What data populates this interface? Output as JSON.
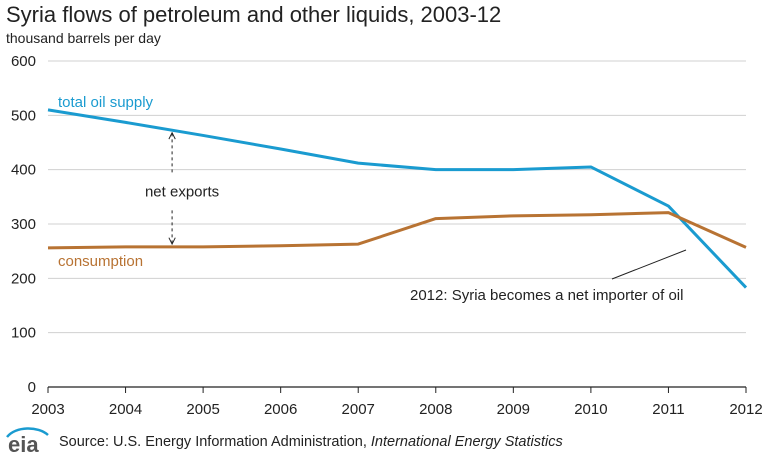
{
  "logo_text": "eia",
  "source": {
    "prefix": "Source: U.S. Energy Information Administration, ",
    "italic": "International Energy Statistics"
  },
  "colors": {
    "supply": "#1a9bd0",
    "consumption": "#b87333",
    "grid": "#d0d0d0",
    "axis": "#222222"
  },
  "chart_data": {
    "type": "line",
    "title": "Syria flows of petroleum and other liquids, 2003-12",
    "subtitle": "thousand barrels per day",
    "x": [
      2003,
      2004,
      2005,
      2006,
      2007,
      2008,
      2009,
      2010,
      2011,
      2012
    ],
    "ylim": [
      0,
      600
    ],
    "yticks": [
      0,
      100,
      200,
      300,
      400,
      500,
      600
    ],
    "grid": true,
    "series": [
      {
        "name": "total oil supply",
        "values": [
          510,
          487,
          463,
          438,
          412,
          400,
          400,
          405,
          333,
          183
        ]
      },
      {
        "name": "consumption",
        "values": [
          256,
          258,
          258,
          260,
          263,
          310,
          315,
          317,
          321,
          257
        ]
      }
    ],
    "annotations": {
      "net_exports": "net exports",
      "importer": "2012: Syria becomes a net importer of oil"
    }
  }
}
